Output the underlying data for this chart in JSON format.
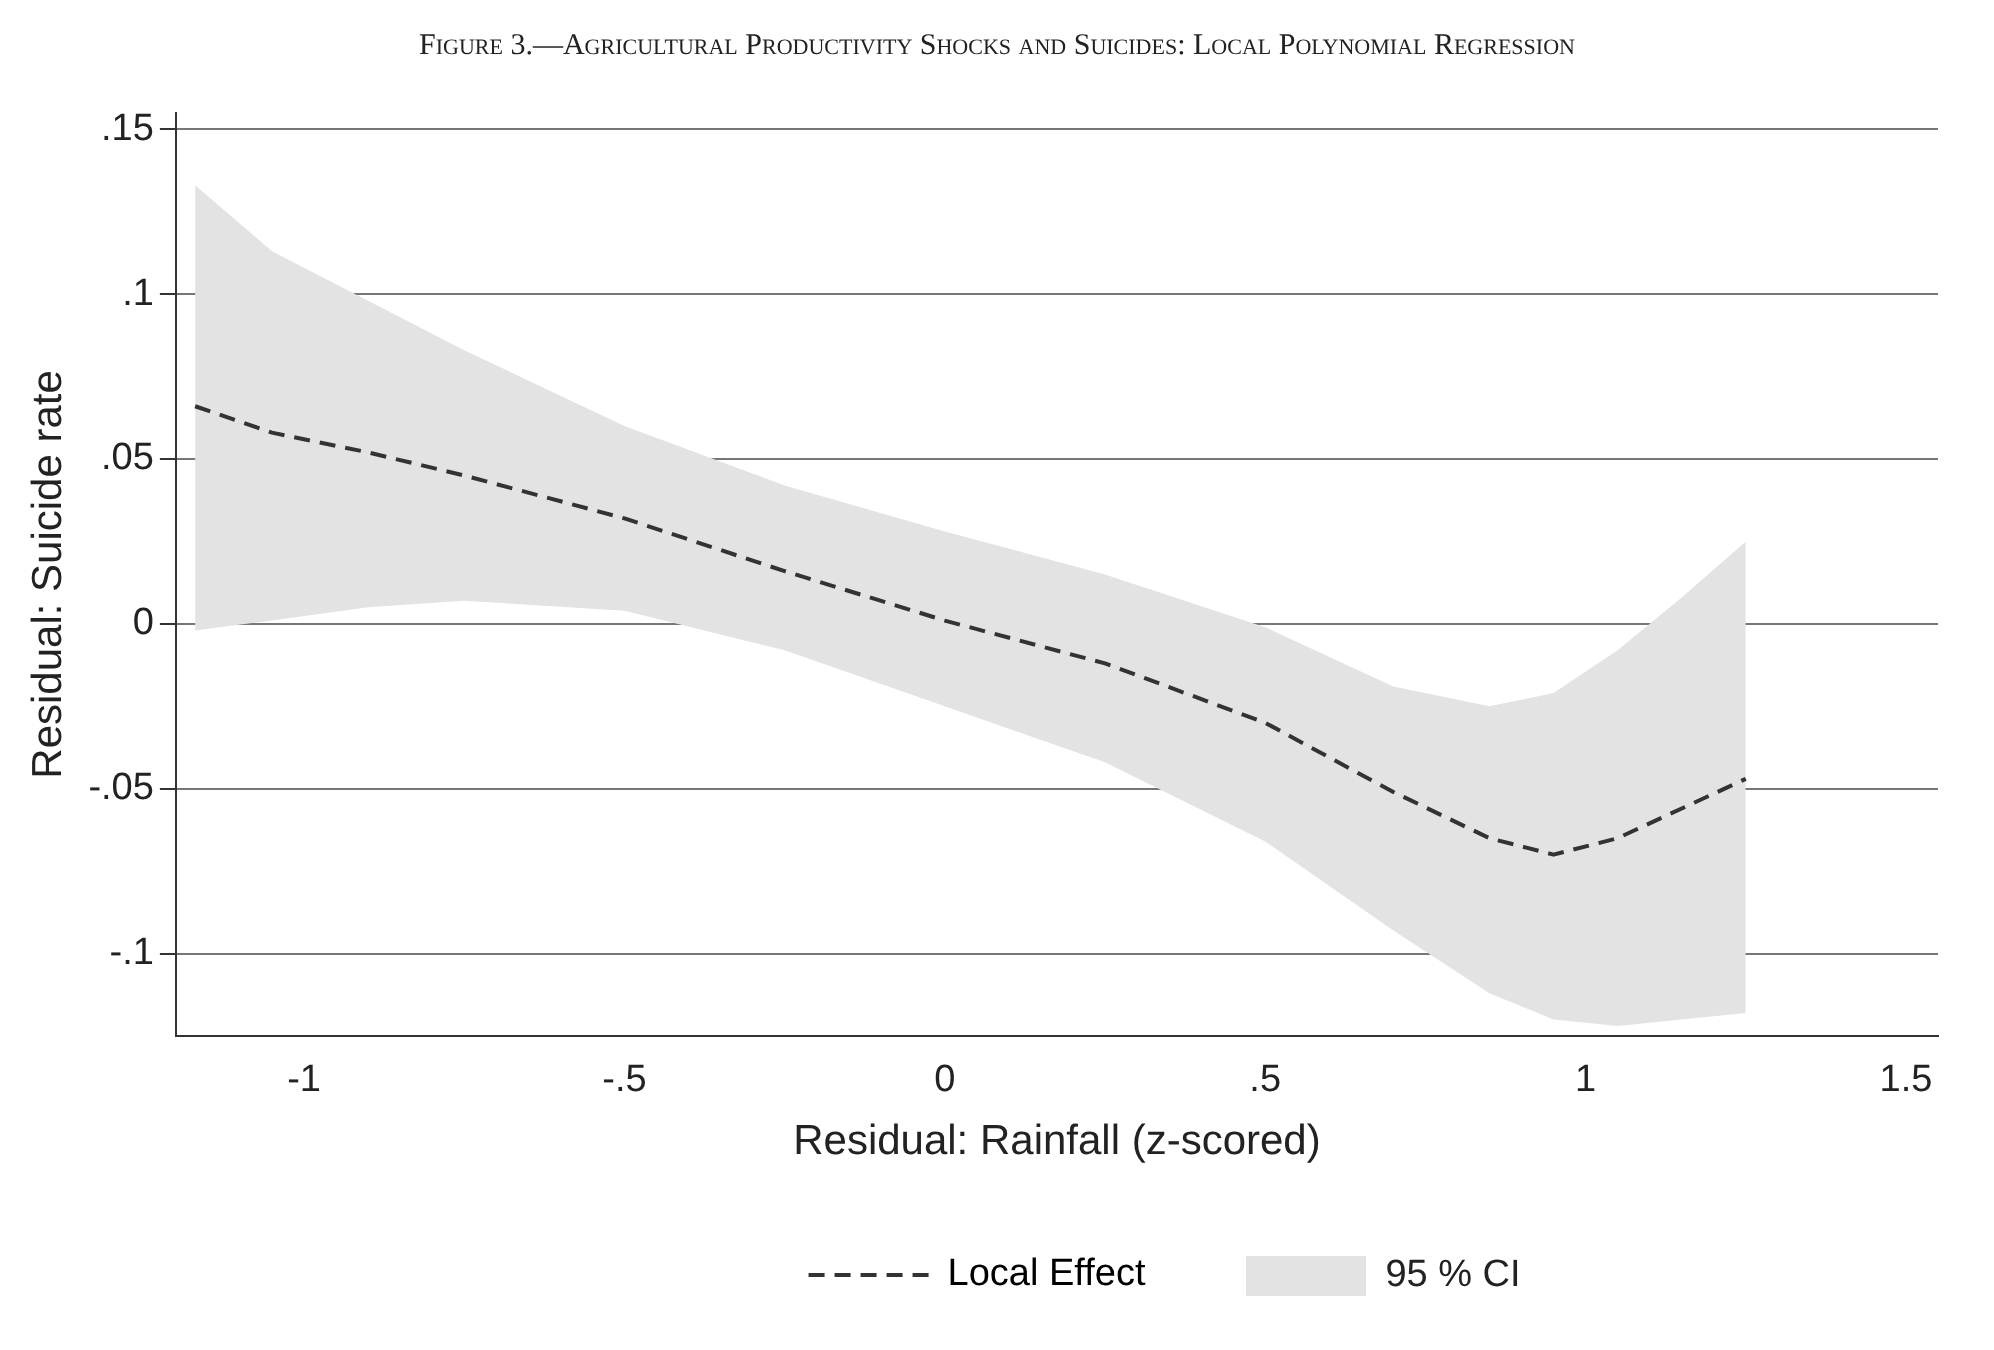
{
  "chart_data": {
    "type": "line",
    "title": "Figure 3.—Agricultural Productivity Shocks and Suicides: Local Polynomial Regression",
    "xlabel": "Residual: Rainfall (z-scored)",
    "ylabel": "Residual: Suicide rate",
    "annotations": [
      "95 % CI"
    ],
    "xlim": [
      -1.2,
      1.55
    ],
    "xticks": [
      {
        "value": -1,
        "label": "-1"
      },
      {
        "value": -0.5,
        "label": "-.5"
      },
      {
        "value": 0,
        "label": "0"
      },
      {
        "value": 0.5,
        "label": ".5"
      },
      {
        "value": 1,
        "label": "1"
      },
      {
        "value": 1.5,
        "label": "1.5"
      }
    ],
    "ylim": [
      -0.125,
      0.155
    ],
    "yticks": [
      {
        "value": -0.1,
        "label": "-.1"
      },
      {
        "value": -0.05,
        "label": "-.05"
      },
      {
        "value": 0,
        "label": "0"
      },
      {
        "value": 0.05,
        "label": ".05"
      },
      {
        "value": 0.1,
        "label": ".1"
      },
      {
        "value": 0.15,
        "label": ".15"
      }
    ],
    "grid": "y",
    "legend": "bottom",
    "marker": "none",
    "line_style": "dashed",
    "series": [
      {
        "name": "Local Effect",
        "color": "#333333",
        "x": [
          -1.17,
          -1.05,
          -0.9,
          -0.75,
          -0.5,
          -0.25,
          0,
          0.25,
          0.5,
          0.7,
          0.85,
          0.95,
          1.05,
          1.15,
          1.25
        ],
        "values": [
          0.066,
          0.058,
          0.052,
          0.045,
          0.032,
          0.016,
          0.001,
          -0.012,
          -0.03,
          -0.051,
          -0.065,
          -0.07,
          -0.065,
          -0.056,
          -0.047
        ],
        "lower": [
          -0.002,
          0.001,
          0.005,
          0.007,
          0.004,
          -0.008,
          -0.025,
          -0.042,
          -0.066,
          -0.093,
          -0.112,
          -0.12,
          -0.122,
          -0.12,
          -0.118
        ],
        "upper": [
          0.133,
          0.113,
          0.098,
          0.083,
          0.06,
          0.042,
          0.028,
          0.015,
          -0.001,
          -0.019,
          -0.025,
          -0.021,
          -0.008,
          0.008,
          0.025
        ]
      }
    ]
  }
}
